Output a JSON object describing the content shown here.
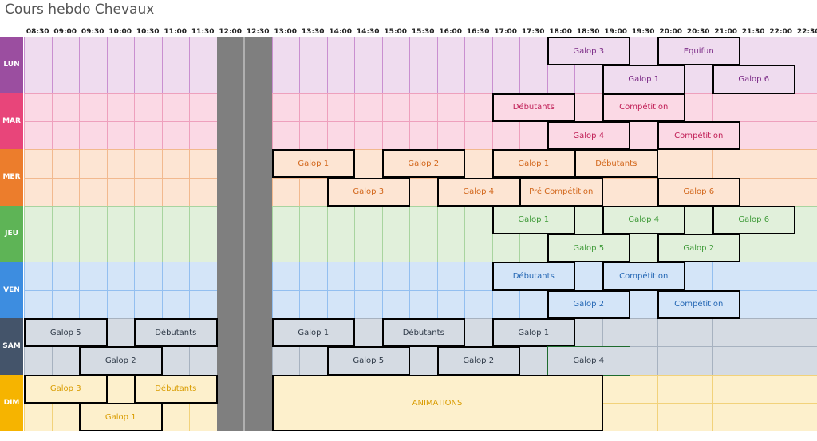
{
  "title": "Cours hebdo Chevaux",
  "times": [
    "08:30",
    "09:00",
    "09:30",
    "10:00",
    "10:30",
    "11:00",
    "11:30",
    "12:00",
    "12:30",
    "13:00",
    "13:30",
    "14:00",
    "14:30",
    "15:00",
    "15:30",
    "16:00",
    "16:30",
    "17:00",
    "17:30",
    "18:00",
    "18:30",
    "19:00",
    "19:30",
    "20:00",
    "20:30",
    "21:00",
    "21:30",
    "22:00",
    "22:30"
  ],
  "lunch_start": "12:00",
  "lunch_end": "13:00",
  "days": [
    {
      "label": "LUN",
      "key": "lun",
      "color": "#9b4ea0",
      "bg": "#efdcef",
      "line": "#c98fd0",
      "text": "#7b2a86"
    },
    {
      "label": "MAR",
      "key": "mar",
      "color": "#e8457a",
      "bg": "#fbd9e5",
      "line": "#eea0bd",
      "text": "#c01d55"
    },
    {
      "label": "MER",
      "key": "mer",
      "color": "#ec7d2c",
      "bg": "#fde5d3",
      "line": "#f2b98e",
      "text": "#d2661a"
    },
    {
      "label": "JEU",
      "key": "jeu",
      "color": "#5eb456",
      "bg": "#e1f0db",
      "line": "#a8d49f",
      "text": "#3e9a38"
    },
    {
      "label": "VEN",
      "key": "ven",
      "color": "#3d8de0",
      "bg": "#d4e5f8",
      "line": "#93bff0",
      "text": "#2467b4"
    },
    {
      "label": "SAM",
      "key": "sam",
      "color": "#44546a",
      "bg": "#d5dbe3",
      "line": "#a7b2c0",
      "text": "#2f3a48"
    },
    {
      "label": "DIM",
      "key": "dim",
      "color": "#f6b400",
      "bg": "#fdf0cc",
      "line": "#f2d27a",
      "text": "#d99c00"
    }
  ],
  "blocks": [
    {
      "day": 0,
      "sub": 0,
      "start": "18:00",
      "end": "19:30",
      "label": "Galop 3"
    },
    {
      "day": 0,
      "sub": 0,
      "start": "20:00",
      "end": "21:30",
      "label": "Equifun"
    },
    {
      "day": 0,
      "sub": 1,
      "start": "19:00",
      "end": "20:30",
      "label": "Galop 1"
    },
    {
      "day": 0,
      "sub": 1,
      "start": "21:00",
      "end": "22:30",
      "label": "Galop 6"
    },
    {
      "day": 1,
      "sub": 0,
      "start": "17:00",
      "end": "18:30",
      "label": "Débutants"
    },
    {
      "day": 1,
      "sub": 0,
      "start": "19:00",
      "end": "20:30",
      "label": "Compétition"
    },
    {
      "day": 1,
      "sub": 1,
      "start": "18:00",
      "end": "19:30",
      "label": "Galop 4"
    },
    {
      "day": 1,
      "sub": 1,
      "start": "20:00",
      "end": "21:30",
      "label": "Compétition"
    },
    {
      "day": 2,
      "sub": 0,
      "start": "13:00",
      "end": "14:30",
      "label": "Galop 1"
    },
    {
      "day": 2,
      "sub": 0,
      "start": "15:00",
      "end": "16:30",
      "label": "Galop 2"
    },
    {
      "day": 2,
      "sub": 0,
      "start": "17:00",
      "end": "18:30",
      "label": "Galop 1"
    },
    {
      "day": 2,
      "sub": 0,
      "start": "18:30",
      "end": "20:00",
      "label": "Débutants"
    },
    {
      "day": 2,
      "sub": 1,
      "start": "14:00",
      "end": "15:30",
      "label": "Galop 3"
    },
    {
      "day": 2,
      "sub": 1,
      "start": "16:00",
      "end": "17:30",
      "label": "Galop 4"
    },
    {
      "day": 2,
      "sub": 1,
      "start": "17:30",
      "end": "19:00",
      "label": "Pré Compétition"
    },
    {
      "day": 2,
      "sub": 1,
      "start": "20:00",
      "end": "21:30",
      "label": "Galop 6"
    },
    {
      "day": 3,
      "sub": 0,
      "start": "17:00",
      "end": "18:30",
      "label": "Galop 1"
    },
    {
      "day": 3,
      "sub": 0,
      "start": "19:00",
      "end": "20:30",
      "label": "Galop 4"
    },
    {
      "day": 3,
      "sub": 0,
      "start": "21:00",
      "end": "22:30",
      "label": "Galop 6"
    },
    {
      "day": 3,
      "sub": 1,
      "start": "18:00",
      "end": "19:30",
      "label": "Galop 5"
    },
    {
      "day": 3,
      "sub": 1,
      "start": "20:00",
      "end": "21:30",
      "label": "Galop 2"
    },
    {
      "day": 4,
      "sub": 0,
      "start": "17:00",
      "end": "18:30",
      "label": "Débutants"
    },
    {
      "day": 4,
      "sub": 0,
      "start": "19:00",
      "end": "20:30",
      "label": "Compétition"
    },
    {
      "day": 4,
      "sub": 1,
      "start": "18:00",
      "end": "19:30",
      "label": "Galop 2"
    },
    {
      "day": 4,
      "sub": 1,
      "start": "20:00",
      "end": "21:30",
      "label": "Compétition"
    },
    {
      "day": 5,
      "sub": 0,
      "start": "08:30",
      "end": "10:00",
      "label": "Galop 5"
    },
    {
      "day": 5,
      "sub": 0,
      "start": "10:30",
      "end": "12:00",
      "label": "Débutants"
    },
    {
      "day": 5,
      "sub": 0,
      "start": "13:00",
      "end": "14:30",
      "label": "Galop 1"
    },
    {
      "day": 5,
      "sub": 0,
      "start": "15:00",
      "end": "16:30",
      "label": "Débutants"
    },
    {
      "day": 5,
      "sub": 0,
      "start": "17:00",
      "end": "18:30",
      "label": "Galop 1"
    },
    {
      "day": 5,
      "sub": 1,
      "start": "09:30",
      "end": "11:00",
      "label": "Galop 2"
    },
    {
      "day": 5,
      "sub": 1,
      "start": "14:00",
      "end": "15:30",
      "label": "Galop 5"
    },
    {
      "day": 5,
      "sub": 1,
      "start": "16:00",
      "end": "17:30",
      "label": "Galop 2"
    },
    {
      "day": 5,
      "sub": 1,
      "start": "18:00",
      "end": "19:30",
      "label": "Galop 4",
      "selected": true
    },
    {
      "day": 6,
      "sub": 0,
      "start": "08:30",
      "end": "10:00",
      "label": "Galop 3"
    },
    {
      "day": 6,
      "sub": 0,
      "start": "10:30",
      "end": "12:00",
      "label": "Débutants"
    },
    {
      "day": 6,
      "sub": 1,
      "start": "09:30",
      "end": "11:00",
      "label": "Galop 1"
    },
    {
      "day": 6,
      "sub": "full",
      "start": "13:00",
      "end": "19:00",
      "label": "ANIMATIONS"
    }
  ]
}
